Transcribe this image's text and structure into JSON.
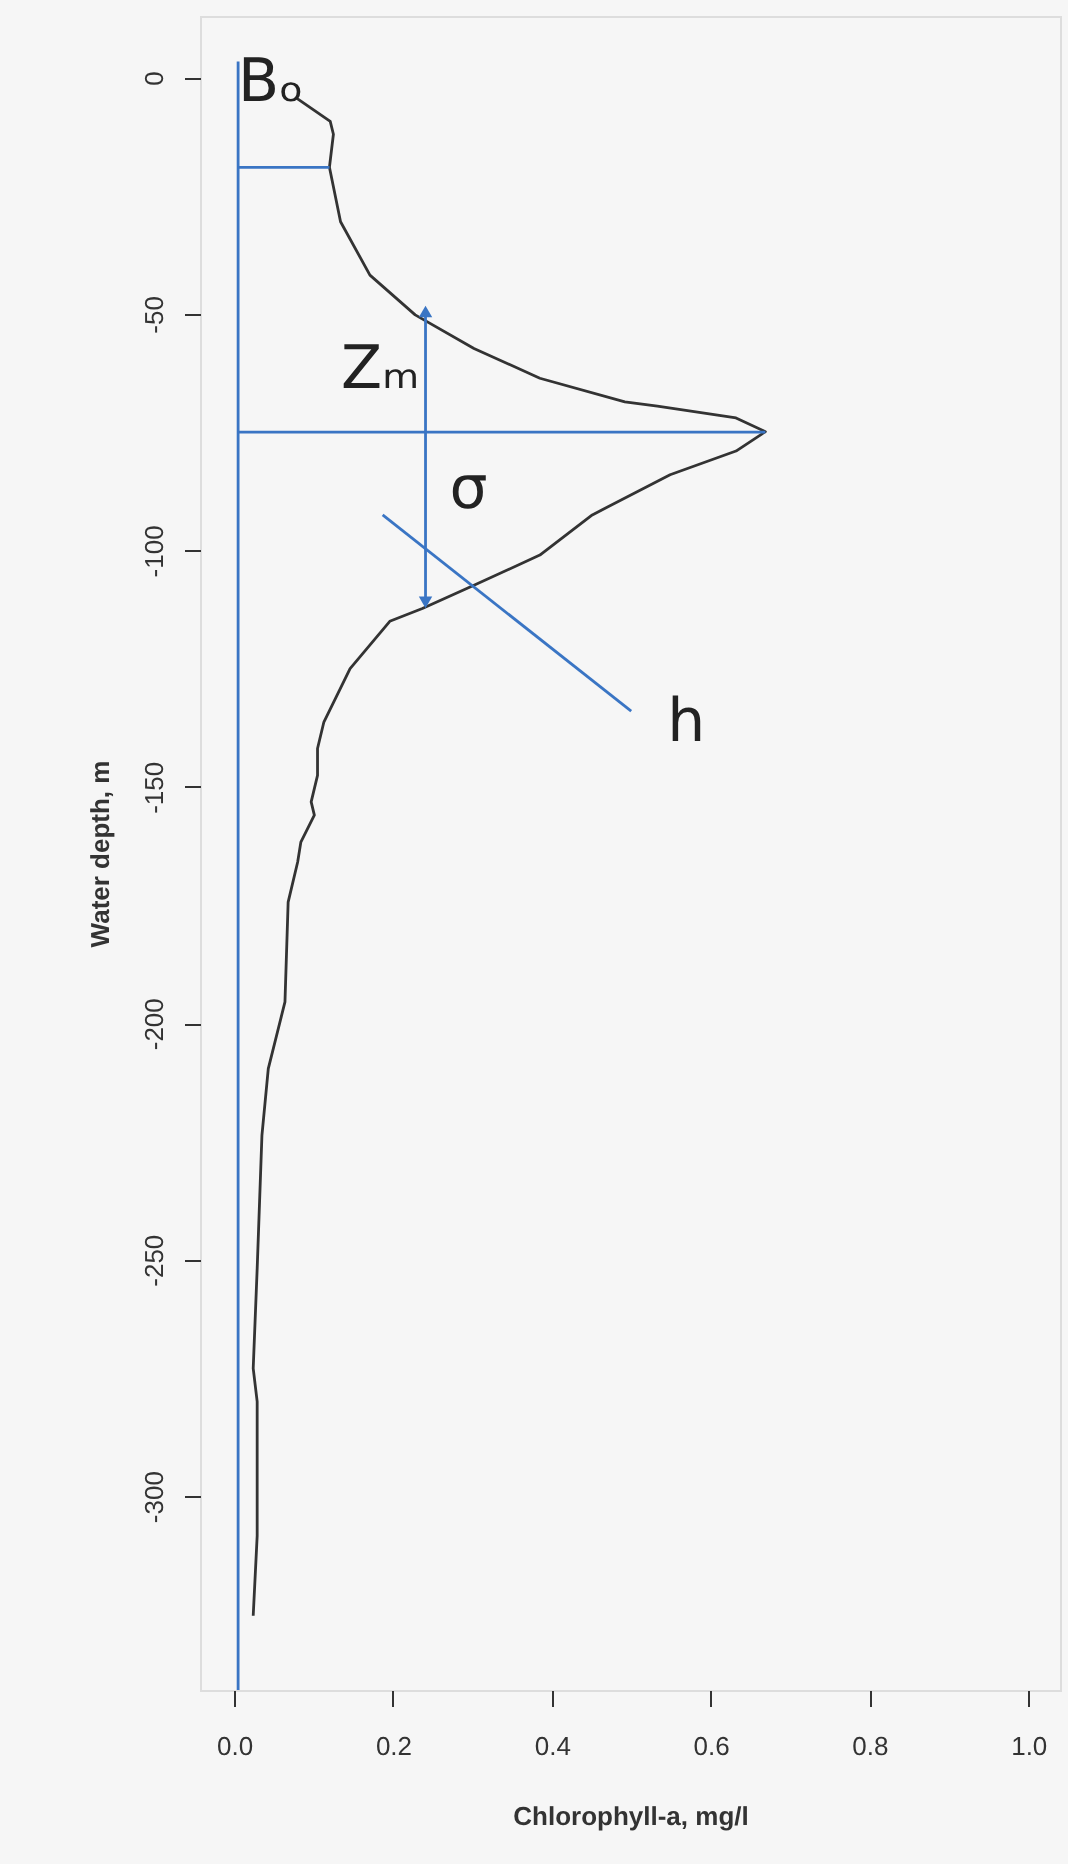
{
  "chart_data": {
    "type": "line",
    "xlabel": "Chlorophyll-a, mg/l",
    "ylabel": "Water depth, m",
    "xlim": [
      -0.043,
      1.04
    ],
    "ylim": [
      -341,
      13
    ],
    "xticks": [
      {
        "value": 0,
        "label": "0.0"
      },
      0.2,
      0.4,
      0.6,
      0.8,
      {
        "value": 1,
        "label": "1.0"
      }
    ],
    "yticks": [
      0,
      -50,
      -100,
      -150,
      -200,
      -250,
      -300
    ],
    "grid": false,
    "line_style": "solid",
    "series": [
      {
        "color": "#333333",
        "x": [
          0.079,
          0.121,
          0.125,
          0.12,
          0.134,
          0.171,
          0.228,
          0.302,
          0.385,
          0.492,
          0.533,
          0.632,
          0.669,
          0.632,
          0.549,
          0.451,
          0.385,
          0.302,
          0.237,
          0.196,
          0.146,
          0.113,
          0.105,
          0.105,
          0.097,
          0.101,
          0.084,
          0.08,
          0.068,
          0.064,
          0.043,
          0.035,
          0.029,
          0.024,
          0.029,
          0.029,
          0.024
        ],
        "values": [
          -4.4,
          -9.3,
          -12,
          -19,
          -30.5,
          -41.8,
          -50.2,
          -57.3,
          -63.6,
          -68.6,
          -69.5,
          -72,
          -74.9,
          -79,
          -84,
          -92.5,
          -101,
          -107.4,
          -112.3,
          -115,
          -125,
          -136.3,
          -141.9,
          -147.6,
          -153.2,
          -156,
          -161.7,
          -165.9,
          -174.4,
          -195.5,
          -209.6,
          -223.7,
          -251.9,
          -273,
          -280,
          -308.4,
          -325.3
        ]
      },
      {
        "color": "#3a75c4",
        "x": [
          0.005,
          0.005
        ],
        "values": [
          3.4,
          -341
        ]
      },
      {
        "color": "#3a75c4",
        "x": [
          0.005,
          0.12
        ],
        "values": [
          -19,
          -19
        ]
      },
      {
        "color": "#3a75c4",
        "x": [
          0.005,
          0.669
        ],
        "values": [
          -75,
          -75
        ]
      },
      {
        "color": "#3a75c4",
        "marker": "triangle",
        "x": [
          0.241,
          0.241
        ],
        "values": [
          -49.5,
          -111
        ]
      },
      {
        "color": "#3a75c4",
        "x": [
          0.5,
          0.187
        ],
        "values": [
          -134,
          -92.5
        ]
      }
    ],
    "annotations": [
      {
        "text": "Bₒ",
        "x": 0.005,
        "y": 3.4
      },
      {
        "text": "Zₘ",
        "x": 0.241,
        "y": -49.5
      },
      {
        "text": "σ",
        "x": 0.241,
        "y": -75
      },
      {
        "text": "h",
        "x": 0.5,
        "y": -134
      }
    ]
  }
}
